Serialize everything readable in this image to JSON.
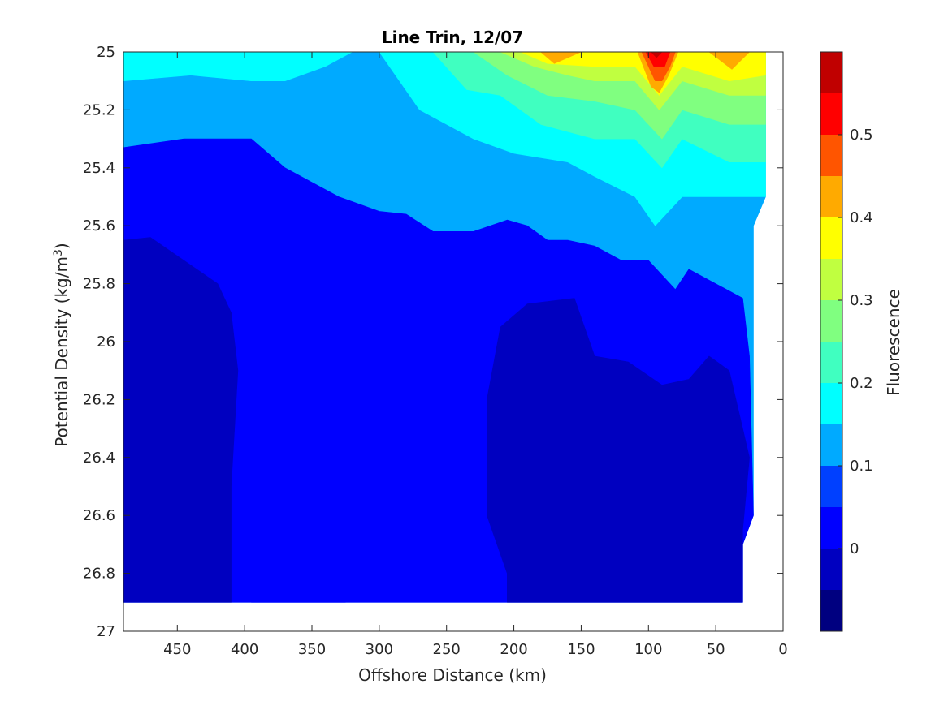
{
  "chart_data": {
    "type": "heatmap",
    "subtype": "filled-contour",
    "title": "Line Trin, 12/07",
    "xlabel": "Offshore Distance (km)",
    "ylabel_main": "Potential Density (kg/m",
    "ylabel_sup": "3",
    "ylabel_end": ")",
    "colorbar_label": "Fluorescence",
    "x_axis": {
      "min": 0,
      "max": 490,
      "reversed": true,
      "ticks": [
        450,
        400,
        350,
        300,
        250,
        200,
        150,
        100,
        50,
        0
      ],
      "tick_labels": [
        "450",
        "400",
        "350",
        "300",
        "250",
        "200",
        "150",
        "100",
        "50",
        "0"
      ]
    },
    "y_axis": {
      "min": 25,
      "max": 27,
      "reversed": true,
      "ticks": [
        25,
        25.2,
        25.4,
        25.6,
        25.8,
        26,
        26.2,
        26.4,
        26.6,
        26.8,
        27
      ],
      "tick_labels": [
        "25",
        "25.2",
        "25.4",
        "25.6",
        "25.8",
        "26",
        "26.2",
        "26.4",
        "26.6",
        "26.8",
        "27"
      ]
    },
    "colorbar": {
      "levels": [
        -0.1,
        -0.05,
        0,
        0.05,
        0.1,
        0.15,
        0.2,
        0.25,
        0.3,
        0.35,
        0.4,
        0.45,
        0.5,
        0.55,
        0.6
      ],
      "colors": [
        "#000080",
        "#0000C0",
        "#0000FF",
        "#0040FF",
        "#00AAFF",
        "#00FFFF",
        "#40FFC0",
        "#80FF80",
        "#C0FF40",
        "#FFFF00",
        "#FFAA00",
        "#FF5500",
        "#FF0000",
        "#C00000"
      ],
      "ticks": [
        0,
        0.1,
        0.2,
        0.3,
        0.4,
        0.5
      ],
      "tick_labels": [
        "0",
        "0.1",
        "0.2",
        "0.3",
        "0.4",
        "0.5"
      ]
    },
    "data_extent": {
      "x_min": 13,
      "x_max": 490,
      "y_min": 25,
      "y_max": 26.9
    },
    "regions": [
      {
        "name": "background-light-blue",
        "level_index": 4,
        "polygon": [
          [
            490,
            25
          ],
          [
            13,
            25
          ],
          [
            13,
            25.5
          ],
          [
            22,
            25.6
          ],
          [
            22,
            26.6
          ],
          [
            30,
            26.7
          ],
          [
            30,
            26.9
          ],
          [
            490,
            26.9
          ]
        ]
      },
      {
        "name": "cyan-top-left",
        "level_index": 5,
        "polygon": [
          [
            490,
            25
          ],
          [
            320,
            25
          ],
          [
            340,
            25.05
          ],
          [
            370,
            25.1
          ],
          [
            395,
            25.1
          ],
          [
            440,
            25.08
          ],
          [
            490,
            25.1
          ]
        ]
      },
      {
        "name": "blue-deep-body",
        "level_index": 2,
        "polygon": [
          [
            490,
            25.33
          ],
          [
            445,
            25.3
          ],
          [
            420,
            25.3
          ],
          [
            395,
            25.3
          ],
          [
            370,
            25.4
          ],
          [
            330,
            25.5
          ],
          [
            300,
            25.55
          ],
          [
            280,
            25.56
          ],
          [
            260,
            25.62
          ],
          [
            230,
            25.62
          ],
          [
            205,
            25.58
          ],
          [
            190,
            25.6
          ],
          [
            175,
            25.65
          ],
          [
            160,
            25.65
          ],
          [
            140,
            25.67
          ],
          [
            120,
            25.72
          ],
          [
            100,
            25.72
          ],
          [
            80,
            25.82
          ],
          [
            70,
            25.75
          ],
          [
            30,
            25.85
          ],
          [
            25,
            26.05
          ],
          [
            22,
            26.6
          ],
          [
            30,
            26.7
          ],
          [
            30,
            26.9
          ],
          [
            490,
            26.9
          ]
        ]
      },
      {
        "name": "dark-blue-left",
        "level_index": 1,
        "polygon": [
          [
            490,
            25.65
          ],
          [
            470,
            25.64
          ],
          [
            420,
            25.8
          ],
          [
            410,
            25.9
          ],
          [
            405,
            26.1
          ],
          [
            410,
            26.5
          ],
          [
            410,
            26.7
          ],
          [
            410,
            26.9
          ],
          [
            490,
            26.9
          ]
        ]
      },
      {
        "name": "dark-blue-mid",
        "level_index": 1,
        "polygon": [
          [
            210,
            25.95
          ],
          [
            190,
            25.87
          ],
          [
            155,
            25.85
          ],
          [
            140,
            26.05
          ],
          [
            115,
            26.07
          ],
          [
            90,
            26.15
          ],
          [
            70,
            26.13
          ],
          [
            55,
            26.05
          ],
          [
            40,
            26.1
          ],
          [
            25,
            26.4
          ],
          [
            30,
            26.65
          ],
          [
            30,
            26.9
          ],
          [
            185,
            26.9
          ],
          [
            205,
            26.9
          ],
          [
            205,
            26.8
          ],
          [
            220,
            26.6
          ],
          [
            220,
            26.2
          ]
        ]
      },
      {
        "name": "blue-lower-left",
        "level_index": 2,
        "polygon": [
          [
            395,
            26.9
          ],
          [
            380,
            26.82
          ],
          [
            360,
            26.85
          ],
          [
            325,
            26.9
          ]
        ]
      },
      {
        "name": "cyan-upper-band",
        "level_index": 5,
        "polygon": [
          [
            300,
            25
          ],
          [
            270,
            25.2
          ],
          [
            230,
            25.3
          ],
          [
            200,
            25.35
          ],
          [
            160,
            25.38
          ],
          [
            140,
            25.43
          ],
          [
            110,
            25.5
          ],
          [
            95,
            25.6
          ],
          [
            75,
            25.5
          ],
          [
            40,
            25.5
          ],
          [
            13,
            25.5
          ],
          [
            13,
            25
          ]
        ]
      },
      {
        "name": "aqua-band",
        "level_index": 6,
        "polygon": [
          [
            260,
            25
          ],
          [
            235,
            25.13
          ],
          [
            210,
            25.15
          ],
          [
            180,
            25.25
          ],
          [
            140,
            25.3
          ],
          [
            110,
            25.3
          ],
          [
            90,
            25.4
          ],
          [
            75,
            25.3
          ],
          [
            40,
            25.38
          ],
          [
            13,
            25.38
          ],
          [
            13,
            25
          ]
        ]
      },
      {
        "name": "green-band",
        "level_index": 7,
        "polygon": [
          [
            230,
            25
          ],
          [
            205,
            25.08
          ],
          [
            175,
            25.15
          ],
          [
            140,
            25.17
          ],
          [
            110,
            25.2
          ],
          [
            90,
            25.3
          ],
          [
            75,
            25.2
          ],
          [
            40,
            25.25
          ],
          [
            13,
            25.25
          ],
          [
            13,
            25
          ]
        ]
      },
      {
        "name": "yellow-green-band",
        "level_index": 8,
        "polygon": [
          [
            210,
            25
          ],
          [
            185,
            25.05
          ],
          [
            160,
            25.08
          ],
          [
            140,
            25.1
          ],
          [
            110,
            25.1
          ],
          [
            92,
            25.2
          ],
          [
            75,
            25.1
          ],
          [
            40,
            25.15
          ],
          [
            13,
            25.15
          ],
          [
            13,
            25
          ]
        ]
      },
      {
        "name": "yellow-band",
        "level_index": 9,
        "polygon": [
          [
            195,
            25
          ],
          [
            175,
            25.04
          ],
          [
            140,
            25.05
          ],
          [
            110,
            25.05
          ],
          [
            92,
            25.15
          ],
          [
            75,
            25.05
          ],
          [
            40,
            25.1
          ],
          [
            13,
            25.08
          ],
          [
            13,
            25
          ]
        ]
      },
      {
        "name": "orange-left",
        "level_index": 10,
        "polygon": [
          [
            180,
            25
          ],
          [
            170,
            25.04
          ],
          [
            150,
            25
          ]
        ]
      },
      {
        "name": "orange-right",
        "level_index": 10,
        "polygon": [
          [
            55,
            25
          ],
          [
            38,
            25.06
          ],
          [
            25,
            25
          ]
        ]
      },
      {
        "name": "orange-peak",
        "level_index": 10,
        "polygon": [
          [
            108,
            25
          ],
          [
            98,
            25.12
          ],
          [
            92,
            25.14
          ],
          [
            85,
            25.08
          ],
          [
            78,
            25
          ]
        ]
      },
      {
        "name": "red-orange-peak",
        "level_index": 11,
        "polygon": [
          [
            105,
            25
          ],
          [
            95,
            25.1
          ],
          [
            90,
            25.1
          ],
          [
            84,
            25.05
          ],
          [
            80,
            25
          ]
        ]
      },
      {
        "name": "red-peak",
        "level_index": 12,
        "polygon": [
          [
            102,
            25
          ],
          [
            96,
            25.05
          ],
          [
            88,
            25.05
          ],
          [
            84,
            25
          ]
        ]
      },
      {
        "name": "dark-red-core",
        "level_index": 13,
        "polygon": [
          [
            98,
            25
          ],
          [
            94,
            25.02
          ],
          [
            90,
            25
          ]
        ]
      }
    ]
  }
}
